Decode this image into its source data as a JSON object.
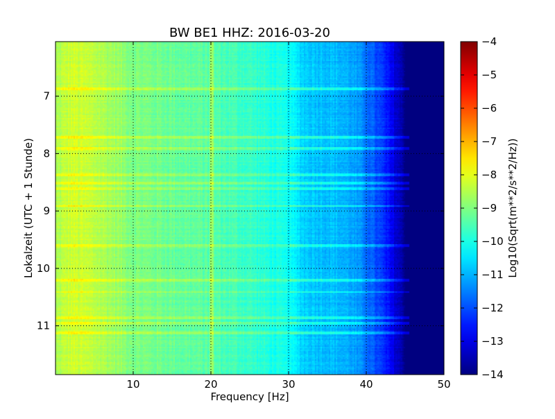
{
  "chart_data": {
    "type": "heatmap",
    "title": "BW BE1 HHZ: 2016-03-20",
    "xlabel": "Frequency [Hz]",
    "ylabel": "Lokalzeit (UTC + 1 Stunde)",
    "xlim": [
      0,
      50
    ],
    "ylim": [
      11.85,
      6.05
    ],
    "y_inverted": true,
    "x_ticks": [
      10,
      20,
      30,
      40,
      50
    ],
    "x_tick_labels": [
      "10",
      "20",
      "30",
      "40",
      "50"
    ],
    "y_ticks": [
      7,
      8,
      9,
      10,
      11
    ],
    "y_tick_labels": [
      "7",
      "8",
      "9",
      "10",
      "11"
    ],
    "grid": true,
    "colormap": "jet",
    "colorbar": {
      "label": "Log10(Sqrt(m**2/s**2/Hz))",
      "min": -14,
      "max": -4,
      "ticks": [
        -4,
        -5,
        -6,
        -7,
        -8,
        -9,
        -10,
        -11,
        -12,
        -13,
        -14
      ],
      "tick_labels": [
        "−4",
        "−5",
        "−6",
        "−7",
        "−8",
        "−9",
        "−10",
        "−11",
        "−12",
        "−13",
        "−14"
      ]
    },
    "spectral_profile": {
      "frequency_hz": [
        0,
        2,
        5,
        10,
        15,
        20,
        25,
        30,
        32,
        34,
        36,
        38,
        40,
        42,
        44,
        45,
        50
      ],
      "log_amplitude": [
        -8.6,
        -8.2,
        -8.4,
        -9.0,
        -9.2,
        -9.4,
        -9.7,
        -10.2,
        -10.7,
        -10.8,
        -10.9,
        -11.1,
        -11.6,
        -12.3,
        -13.3,
        -14,
        -14
      ]
    },
    "horizontal_bands_hours": [
      6.85,
      7.7,
      7.9,
      8.35,
      8.5,
      8.6,
      8.9,
      9.6,
      10.2,
      10.4,
      10.85,
      10.95,
      11.12
    ],
    "vertical_line_hz": 20
  }
}
